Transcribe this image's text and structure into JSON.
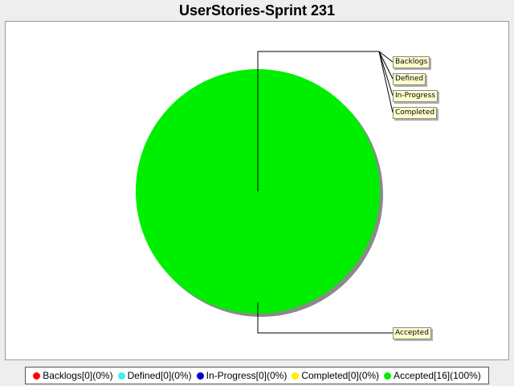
{
  "chart_data": {
    "type": "pie",
    "title": "UserStories-Sprint 231",
    "slices": [
      {
        "label": "Backlogs",
        "value": 0,
        "color": "#ff0000",
        "legend": "Backlogs[0](0%)"
      },
      {
        "label": "Defined",
        "value": 0,
        "color": "#44eeee",
        "legend": "Defined[0](0%)"
      },
      {
        "label": "In-Progress",
        "value": 0,
        "color": "#0000cc",
        "legend": "In-Progress[0](0%)"
      },
      {
        "label": "Completed",
        "value": 0,
        "color": "#ffee00",
        "legend": "Completed[0](0%)"
      },
      {
        "label": "Accepted",
        "value": 16,
        "color": "#00ee00",
        "legend": "Accepted[16](100%)"
      }
    ],
    "legend_position": "bottom"
  }
}
